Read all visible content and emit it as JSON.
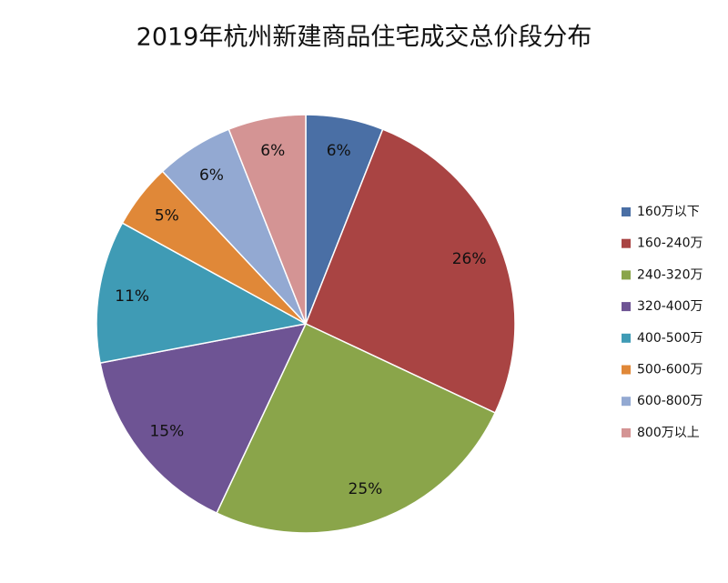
{
  "chart_data": {
    "type": "pie",
    "title": "2019年杭州新建商品住宅成交总价段分布",
    "categories": [
      "160万以下",
      "160-240万",
      "240-320万",
      "320-400万",
      "400-500万",
      "500-600万",
      "600-800万",
      "800万以上"
    ],
    "values": [
      6,
      26,
      25,
      15,
      11,
      5,
      6,
      6
    ],
    "value_labels": [
      "6%",
      "26%",
      "25%",
      "15%",
      "11%",
      "5%",
      "6%",
      "6%"
    ],
    "colors": [
      "#4a6fa5",
      "#a94443",
      "#8aa54a",
      "#6e5494",
      "#3f9bb5",
      "#e08838",
      "#93a9d2",
      "#d49494"
    ],
    "legend": "right"
  }
}
